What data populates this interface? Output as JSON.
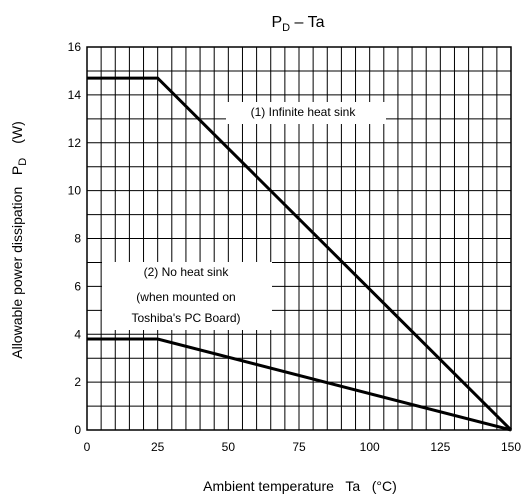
{
  "chart_data": {
    "type": "line",
    "title_main": "P",
    "title_sub": "D",
    "title_rest": " – Ta",
    "xlabel": "Ambient temperature   Ta   (°C)",
    "ylabel_text": "Allowable power dissipation   P",
    "ylabel_sub": "D",
    "ylabel_unit": "(W)",
    "xlim": [
      0,
      150
    ],
    "ylim": [
      0,
      16
    ],
    "x_ticks": [
      "0",
      "25",
      "50",
      "75",
      "100",
      "125",
      "150"
    ],
    "y_ticks": [
      "0",
      "2",
      "4",
      "6",
      "8",
      "10",
      "12",
      "14",
      "16"
    ],
    "grid": true,
    "series": [
      {
        "name": "(1) Infinite heat sink",
        "x": [
          0,
          25,
          150
        ],
        "y": [
          14.7,
          14.7,
          0
        ]
      },
      {
        "name": "(2) No heat sink",
        "x": [
          0,
          25,
          150
        ],
        "y": [
          3.8,
          3.8,
          0
        ]
      }
    ],
    "annotations": [
      {
        "lines": [
          "(1) Infinite heat sink"
        ]
      },
      {
        "lines": [
          "(2) No heat sink",
          "(when mounted on",
          "Toshiba's PC Board)"
        ]
      }
    ]
  }
}
